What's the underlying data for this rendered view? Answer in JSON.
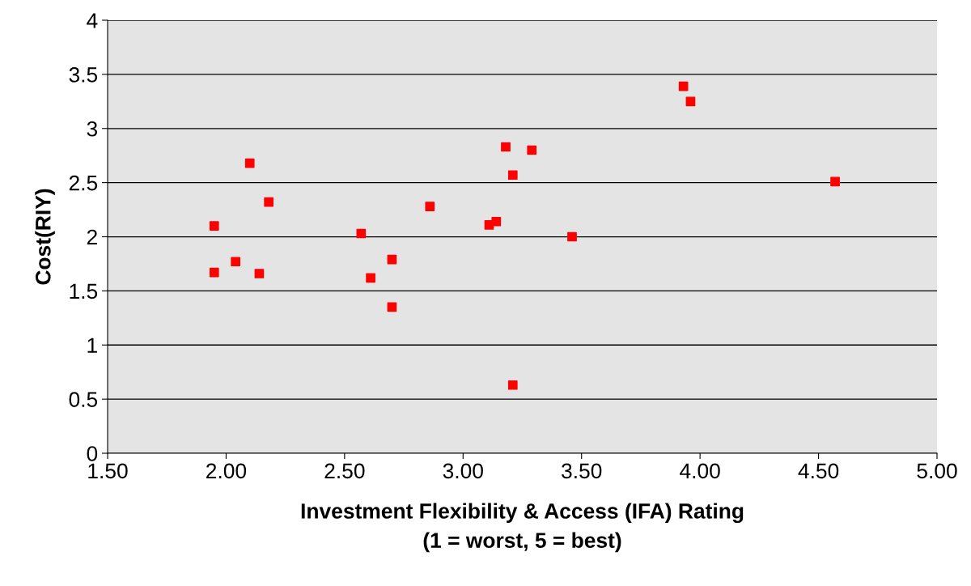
{
  "chart_data": {
    "type": "scatter",
    "xlabel": "Investment Flexibility & Access (IFA) Rating\n(1 = worst, 5 = best)",
    "ylabel": "Cost(RIY)",
    "series": [
      {
        "color": "#ff0000",
        "x": [
          1.95,
          1.95,
          2.04,
          2.1,
          2.14,
          2.18,
          2.57,
          2.61,
          2.7,
          2.7,
          2.86,
          3.11,
          3.14,
          3.18,
          3.21,
          3.29,
          3.21,
          3.46,
          3.93,
          3.96,
          4.57
        ],
        "values": [
          2.1,
          1.67,
          1.77,
          2.68,
          1.66,
          2.32,
          2.03,
          1.62,
          1.79,
          1.35,
          2.28,
          2.11,
          2.14,
          2.83,
          2.57,
          2.8,
          0.63,
          2.0,
          3.39,
          3.25,
          2.51
        ]
      }
    ],
    "marker": "square",
    "grid": "y",
    "legend": false,
    "xlim": [
      1.5,
      5.0
    ],
    "xticks": [
      {
        "value": 1.5,
        "label": "1.50"
      },
      {
        "value": 2.0,
        "label": "2.00"
      },
      {
        "value": 2.5,
        "label": "2.50"
      },
      {
        "value": 3.0,
        "label": "3.00"
      },
      {
        "value": 3.5,
        "label": "3.50"
      },
      {
        "value": 4.0,
        "label": "4.00"
      },
      {
        "value": 4.5,
        "label": "4.50"
      },
      {
        "value": 5.0,
        "label": "5.00"
      }
    ],
    "ylim": [
      0,
      4
    ],
    "yticks": [
      0,
      0.5,
      1,
      1.5,
      2,
      2.5,
      3,
      3.5,
      4
    ]
  }
}
